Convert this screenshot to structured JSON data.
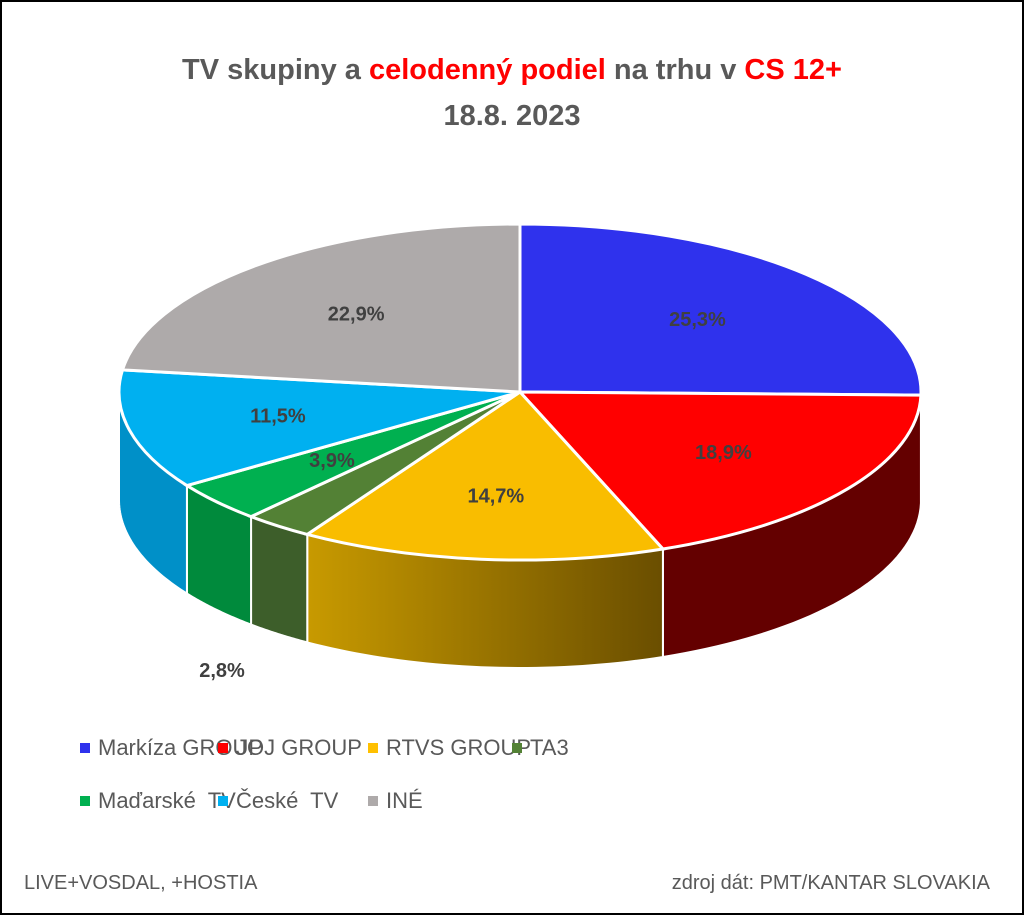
{
  "title": {
    "part1": "TV skupiny a ",
    "part2": "celodenný podiel",
    "part3": " na trhu v ",
    "part4": "CS 12+",
    "line2": "18.8. 2023"
  },
  "chart_data": {
    "type": "pie",
    "style": "3d",
    "title": "TV skupiny a celodenný podiel na trhu v CS 12+ 18.8. 2023",
    "legend_position": "bottom",
    "categories": [
      "Markíza GROUP",
      "JOJ GROUP",
      "RTVS GROUP",
      "TA3",
      "Maďarské  TV",
      "České  TV",
      "INÉ"
    ],
    "values": [
      25.3,
      18.9,
      14.7,
      2.8,
      3.9,
      11.5,
      22.9
    ],
    "labels": [
      "25,3%",
      "18,9%",
      "14,7%",
      "2,8%",
      "3,9%",
      "11,5%",
      "22,9%"
    ],
    "colors": [
      "#2f32ed",
      "#ff0000",
      "#f9bd00",
      "#538135",
      "#00b050",
      "#00b0f0",
      "#aeaaaa"
    ]
  },
  "footer": {
    "left": "LIVE+VOSDAL, +HOSTIA",
    "right": "zdroj dát: PMT/KANTAR SLOVAKIA"
  }
}
